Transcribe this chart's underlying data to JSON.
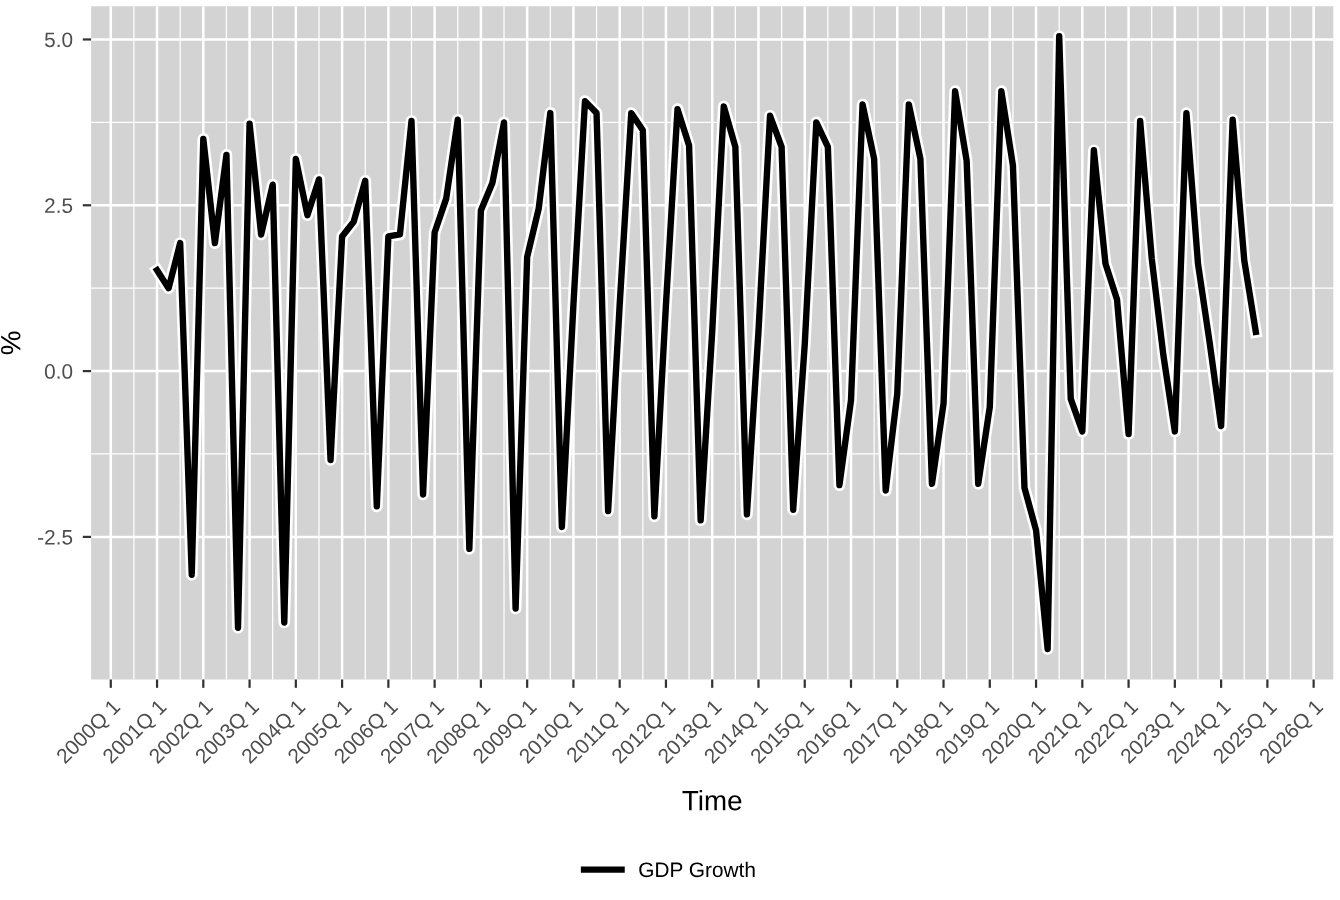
{
  "chart_data": {
    "type": "line",
    "xlabel": "Time",
    "ylabel": "%",
    "ylim": [
      -4.65,
      5.5
    ],
    "categories": [
      "2000Q 1",
      null,
      null,
      null,
      "2001Q 1",
      null,
      null,
      null,
      "2002Q 1",
      null,
      null,
      null,
      "2003Q 1",
      null,
      null,
      null,
      "2004Q 1",
      null,
      null,
      null,
      "2005Q 1",
      null,
      null,
      null,
      "2006Q 1",
      null,
      null,
      null,
      "2007Q 1",
      null,
      null,
      null,
      "2008Q 1",
      null,
      null,
      null,
      "2009Q 1",
      null,
      null,
      null,
      "2010Q 1",
      null,
      null,
      null,
      "2011Q 1",
      null,
      null,
      null,
      "2012Q 1",
      null,
      null,
      null,
      "2013Q 1",
      null,
      null,
      null,
      "2014Q 1",
      null,
      null,
      null,
      "2015Q 1",
      null,
      null,
      null,
      "2016Q 1",
      null,
      null,
      null,
      "2017Q 1",
      null,
      null,
      null,
      "2018Q 1",
      null,
      null,
      null,
      "2019Q 1",
      null,
      null,
      null,
      "2020Q 1",
      null,
      null,
      null,
      "2021Q 1",
      null,
      null,
      null,
      "2022Q 1",
      null,
      null,
      null,
      "2023Q 1",
      null,
      null,
      null,
      "2024Q 1",
      null,
      null,
      null,
      "2025Q 1",
      null,
      null,
      null,
      "2026Q 1"
    ],
    "yticks": [
      {
        "value": -2.5,
        "label": "-2.5"
      },
      {
        "value": 0,
        "label": "0.0"
      },
      {
        "value": 2.5,
        "label": "2.5"
      },
      {
        "value": 5,
        "label": "5.0"
      }
    ],
    "grid": true,
    "legend": "bottom",
    "marker": "none",
    "line_style": "solid",
    "series": [
      {
        "name": "GDP Growth",
        "color": "#000000",
        "values": [
          null,
          null,
          null,
          null,
          1.52,
          1.25,
          1.93,
          -3.07,
          3.5,
          1.93,
          3.26,
          -3.87,
          3.73,
          2.06,
          2.81,
          -3.79,
          3.2,
          2.35,
          2.89,
          -1.34,
          2.03,
          2.25,
          2.87,
          -2.04,
          2.03,
          2.06,
          3.77,
          -1.86,
          2.09,
          2.6,
          3.79,
          -2.68,
          2.42,
          2.84,
          3.75,
          -3.58,
          1.72,
          2.45,
          3.89,
          -2.35,
          1.0,
          4.07,
          3.89,
          -2.11,
          1.0,
          3.89,
          3.63,
          -2.19,
          1.0,
          3.95,
          3.4,
          -2.25,
          0.6,
          3.99,
          3.38,
          -2.16,
          0.6,
          3.85,
          3.38,
          -2.09,
          0.4,
          3.75,
          3.38,
          -1.72,
          -0.44,
          4.02,
          3.2,
          -1.8,
          -0.34,
          4.02,
          3.2,
          -1.7,
          -0.49,
          4.22,
          3.17,
          -1.7,
          -0.54,
          4.22,
          3.1,
          -1.76,
          -2.4,
          -4.19,
          5.05,
          -0.42,
          -0.91,
          3.33,
          1.62,
          1.08,
          -0.95,
          3.77,
          1.7,
          0.25,
          -0.91,
          3.89,
          1.62,
          0.44,
          -0.83,
          3.79,
          1.67,
          0.59,
          null,
          null,
          null,
          null,
          null
        ]
      }
    ]
  }
}
